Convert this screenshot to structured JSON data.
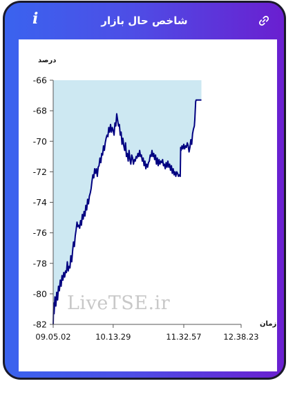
{
  "header": {
    "title": "شاخص حال بازار",
    "info_icon": "i",
    "link_icon": "link-icon"
  },
  "watermark": "LiveTSE.ir",
  "colors": {
    "frame_start": "#3a63ef",
    "frame_end": "#6a1fd0",
    "area_fill": "#cde8f2",
    "line": "#000080"
  },
  "chart_data": {
    "type": "area",
    "ylabel": "درصد",
    "xlabel": "زمان",
    "ylim": [
      -82,
      -66
    ],
    "yticks": [
      "-66",
      "-68",
      "-70",
      "-72",
      "-74",
      "-76",
      "-78",
      "-80",
      "-82"
    ],
    "xticks": [
      "09.05.02",
      "10.13.29",
      "11.32.57",
      "12.38.23"
    ],
    "grid": false,
    "x_units": "minutes since 09.05.02 (x ticks at 0, 68, 148, 213)",
    "series": [
      {
        "points": [
          [
            0,
            -82
          ],
          [
            0.5,
            -80.6
          ],
          [
            1,
            -81.3
          ],
          [
            2,
            -80.2
          ],
          [
            3,
            -80.8
          ],
          [
            4,
            -79.9
          ],
          [
            5,
            -80.4
          ],
          [
            6,
            -79.5
          ],
          [
            7,
            -79.8
          ],
          [
            8,
            -79.1
          ],
          [
            9,
            -79.5
          ],
          [
            10,
            -78.8
          ],
          [
            11,
            -79.1
          ],
          [
            12,
            -78.6
          ],
          [
            13,
            -78.9
          ],
          [
            14,
            -78.5
          ],
          [
            15,
            -78.6
          ],
          [
            16,
            -77.9
          ],
          [
            17,
            -78.5
          ],
          [
            18,
            -78.2
          ],
          [
            19,
            -78.3
          ],
          [
            20,
            -77.5
          ],
          [
            21,
            -77.9
          ],
          [
            22,
            -77.2
          ],
          [
            23,
            -76.6
          ],
          [
            24,
            -76.9
          ],
          [
            25,
            -76.2
          ],
          [
            26,
            -75.8
          ],
          [
            27,
            -75.3
          ],
          [
            28,
            -75.6
          ],
          [
            29,
            -75.5
          ],
          [
            30,
            -75.7
          ],
          [
            31,
            -75.2
          ],
          [
            32,
            -75.5
          ],
          [
            33,
            -74.8
          ],
          [
            34,
            -75.1
          ],
          [
            35,
            -74.6
          ],
          [
            36,
            -74.9
          ],
          [
            37,
            -74.2
          ],
          [
            38,
            -74.5
          ],
          [
            39,
            -73.8
          ],
          [
            40,
            -74.1
          ],
          [
            41,
            -73.6
          ],
          [
            42,
            -73.4
          ],
          [
            43,
            -73.1
          ],
          [
            44,
            -72.6
          ],
          [
            45,
            -72.2
          ],
          [
            46,
            -72.4
          ],
          [
            47,
            -71.8
          ],
          [
            48,
            -72.1
          ],
          [
            49,
            -71.8
          ],
          [
            50,
            -72.3
          ],
          [
            51,
            -71.7
          ],
          [
            52,
            -71.6
          ],
          [
            53,
            -71.1
          ],
          [
            54,
            -71.4
          ],
          [
            55,
            -70.8
          ],
          [
            56,
            -70.9
          ],
          [
            57,
            -70.3
          ],
          [
            58,
            -70.6
          ],
          [
            59,
            -70.1
          ],
          [
            60,
            -69.8
          ],
          [
            61,
            -69.6
          ],
          [
            62,
            -69.7
          ],
          [
            63,
            -69.1
          ],
          [
            64,
            -69.4
          ],
          [
            65,
            -68.9
          ],
          [
            66,
            -69.4
          ],
          [
            67,
            -69.1
          ],
          [
            68,
            -69.3
          ],
          [
            69,
            -69.6
          ],
          [
            70,
            -68.8
          ],
          [
            71,
            -69.0
          ],
          [
            72,
            -68.2
          ],
          [
            73,
            -68.6
          ],
          [
            74,
            -69.0
          ],
          [
            75,
            -68.9
          ],
          [
            76,
            -69.6
          ],
          [
            77,
            -69.4
          ],
          [
            78,
            -70.2
          ],
          [
            79,
            -69.8
          ],
          [
            80,
            -70.3
          ],
          [
            81,
            -70.6
          ],
          [
            82,
            -70.1
          ],
          [
            83,
            -71.0
          ],
          [
            84,
            -70.8
          ],
          [
            85,
            -71.3
          ],
          [
            86,
            -70.6
          ],
          [
            87,
            -71.2
          ],
          [
            88,
            -71.5
          ],
          [
            89,
            -70.9
          ],
          [
            90,
            -71.1
          ],
          [
            91,
            -71.5
          ],
          [
            92,
            -71.2
          ],
          [
            93,
            -71.3
          ],
          [
            94,
            -71.0
          ],
          [
            95,
            -71.1
          ],
          [
            96,
            -70.8
          ],
          [
            97,
            -71.0
          ],
          [
            98,
            -70.6
          ],
          [
            99,
            -71.0
          ],
          [
            100,
            -70.9
          ],
          [
            101,
            -71.3
          ],
          [
            102,
            -71.1
          ],
          [
            103,
            -71.6
          ],
          [
            104,
            -71.3
          ],
          [
            105,
            -71.8
          ],
          [
            106,
            -71.5
          ],
          [
            107,
            -71.7
          ],
          [
            108,
            -71.4
          ],
          [
            109,
            -71.3
          ],
          [
            110,
            -70.9
          ],
          [
            111,
            -71.0
          ],
          [
            112,
            -70.6
          ],
          [
            113,
            -71.0
          ],
          [
            114,
            -70.8
          ],
          [
            115,
            -71.2
          ],
          [
            116,
            -70.9
          ],
          [
            117,
            -71.5
          ],
          [
            118,
            -71.1
          ],
          [
            119,
            -71.6
          ],
          [
            120,
            -71.2
          ],
          [
            121,
            -71.5
          ],
          [
            122,
            -71.3
          ],
          [
            123,
            -71.4
          ],
          [
            124,
            -71.2
          ],
          [
            125,
            -71.6
          ],
          [
            126,
            -71.5
          ],
          [
            127,
            -71.8
          ],
          [
            128,
            -71.4
          ],
          [
            129,
            -71.7
          ],
          [
            130,
            -71.3
          ],
          [
            131,
            -71.7
          ],
          [
            132,
            -71.5
          ],
          [
            133,
            -71.9
          ],
          [
            134,
            -71.6
          ],
          [
            135,
            -72.1
          ],
          [
            136,
            -71.8
          ],
          [
            137,
            -72.2
          ],
          [
            138,
            -72.0
          ],
          [
            139,
            -72.3
          ],
          [
            140,
            -72.0
          ],
          [
            141,
            -72.1
          ],
          [
            142,
            -72.3
          ],
          [
            143,
            -72.2
          ],
          [
            144,
            -72.3
          ],
          [
            144.5,
            -70.4
          ],
          [
            145,
            -70.6
          ],
          [
            146,
            -70.3
          ],
          [
            147,
            -70.5
          ],
          [
            148,
            -70.2
          ],
          [
            149,
            -70.5
          ],
          [
            150,
            -70.3
          ],
          [
            151,
            -70.4
          ],
          [
            152,
            -70.1
          ],
          [
            153,
            -70.3
          ],
          [
            154,
            -70.7
          ],
          [
            155,
            -70.4
          ],
          [
            156,
            -69.9
          ],
          [
            157,
            -70.2
          ],
          [
            158,
            -69.5
          ],
          [
            159,
            -69.2
          ],
          [
            160,
            -69.0
          ],
          [
            160.5,
            -68.6
          ],
          [
            161,
            -68.0
          ],
          [
            161.5,
            -67.4
          ],
          [
            162,
            -67.3
          ],
          [
            165,
            -67.3
          ],
          [
            168,
            -67.3
          ]
        ]
      }
    ]
  }
}
